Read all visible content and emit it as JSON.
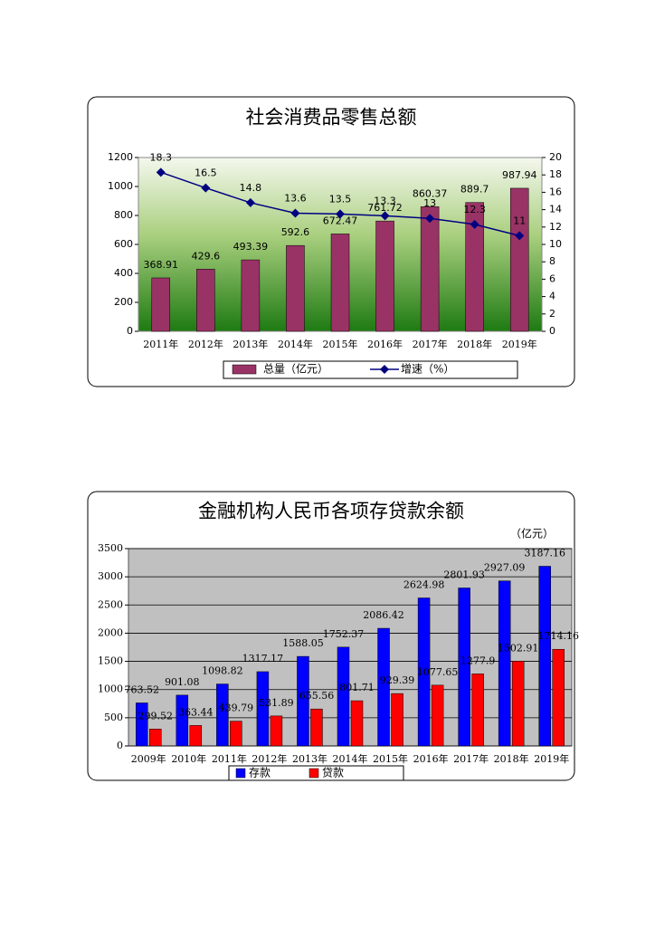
{
  "chart_data": [
    {
      "type": "bar",
      "title": "社会消费品零售总额",
      "categories": [
        "2011年",
        "2012年",
        "2013年",
        "2014年",
        "2015年",
        "2016年",
        "2017年",
        "2018年",
        "2019年"
      ],
      "series": [
        {
          "name": "总量（亿元）",
          "color": "#993366",
          "type": "bar",
          "values": [
            368.91,
            429.6,
            493.39,
            592.6,
            672.47,
            761.72,
            860.37,
            889.7,
            987.94
          ]
        },
        {
          "name": "增速（%）",
          "color": "#000080",
          "type": "line",
          "axis": "y2",
          "values": [
            18.3,
            16.5,
            14.8,
            13.6,
            13.5,
            13.3,
            13,
            12.3,
            11
          ]
        }
      ],
      "ylim": [
        0,
        1200
      ],
      "yticks": [
        0,
        200,
        400,
        600,
        800,
        1000,
        1200
      ],
      "y2lim": [
        0,
        20
      ],
      "y2ticks": [
        0,
        2,
        4,
        6,
        8,
        10,
        12,
        14,
        16,
        18,
        20
      ],
      "grid": false
    },
    {
      "type": "bar",
      "title": "金融机构人民币各项存贷款余额",
      "unit": "（亿元）",
      "categories": [
        "2009年",
        "2010年",
        "2011年",
        "2012年",
        "2013年",
        "2014年",
        "2015年",
        "2016年",
        "2017年",
        "2018年",
        "2019年"
      ],
      "series": [
        {
          "name": "存款",
          "color": "#0000ff",
          "type": "bar",
          "values": [
            763.52,
            901.08,
            1098.82,
            1317.17,
            1588.05,
            1752.37,
            2086.42,
            2624.98,
            2801.93,
            2927.09,
            3187.16
          ]
        },
        {
          "name": "贷款",
          "color": "#ff0000",
          "type": "bar",
          "values": [
            299.52,
            363.44,
            439.79,
            531.89,
            655.56,
            801.71,
            929.39,
            1077.65,
            1277.9,
            1502.91,
            1714.16
          ]
        }
      ],
      "ylim": [
        0,
        3500
      ],
      "yticks": [
        0,
        500,
        1000,
        1500,
        2000,
        2500,
        3000,
        3500
      ],
      "grid": true
    }
  ]
}
